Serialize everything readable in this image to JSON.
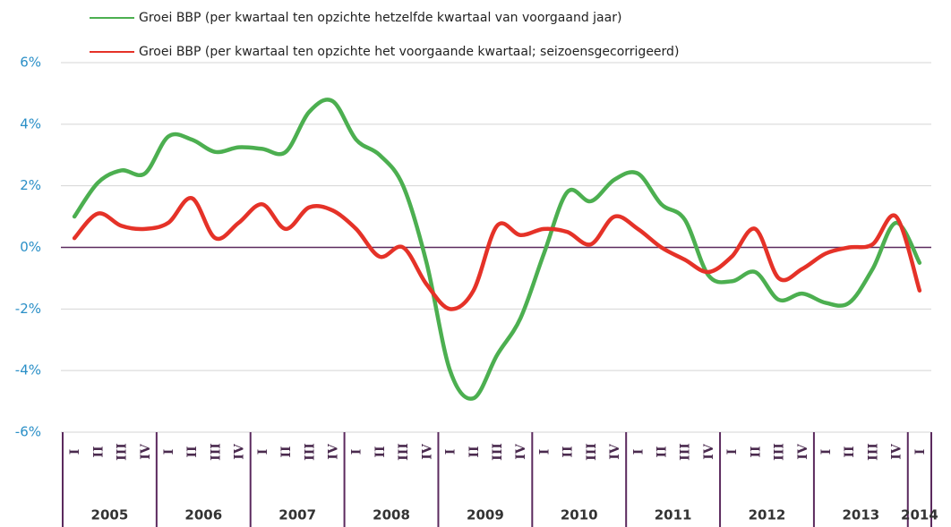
{
  "chart_data": {
    "type": "line",
    "categories": [
      "I",
      "II",
      "III",
      "IV",
      "I",
      "II",
      "III",
      "IV",
      "I",
      "II",
      "III",
      "IV",
      "I",
      "II",
      "III",
      "IV",
      "I",
      "II",
      "III",
      "IV",
      "I",
      "II",
      "III",
      "IV",
      "I",
      "II",
      "III",
      "IV",
      "I",
      "II",
      "III",
      "IV",
      "I",
      "II",
      "III",
      "IV",
      "I"
    ],
    "years": [
      "2005",
      "2006",
      "2007",
      "2008",
      "2009",
      "2010",
      "2011",
      "2012",
      "2013",
      "2014"
    ],
    "series": [
      {
        "name": "Groei BBP (per kwartaal ten opzichte hetzelfde kwartaal van voorgaand jaar)",
        "color": "#4caf50",
        "values": [
          1.0,
          2.1,
          2.5,
          2.4,
          3.6,
          3.5,
          3.1,
          3.25,
          3.2,
          3.1,
          4.4,
          4.75,
          3.5,
          3.0,
          2.0,
          -0.5,
          -4.0,
          -4.9,
          -3.5,
          -2.3,
          -0.2,
          1.8,
          1.5,
          2.2,
          2.4,
          1.4,
          0.9,
          -0.9,
          -1.1,
          -0.8,
          -1.7,
          -1.5,
          -1.8,
          -1.8,
          -0.7,
          0.8,
          -0.5
        ]
      },
      {
        "name": "Groei BBP (per kwartaal ten opzichte het voorgaande kwartaal; seizoensgecorrigeerd)",
        "color": "#e53228",
        "values": [
          0.3,
          1.1,
          0.7,
          0.6,
          0.8,
          1.6,
          0.3,
          0.8,
          1.4,
          0.6,
          1.3,
          1.2,
          0.6,
          -0.3,
          0.0,
          -1.2,
          -2.0,
          -1.4,
          0.7,
          0.4,
          0.6,
          0.5,
          0.1,
          1.0,
          0.6,
          0.0,
          -0.4,
          -0.8,
          -0.3,
          0.6,
          -1.0,
          -0.7,
          -0.2,
          0.0,
          0.1,
          1.0,
          -1.4
        ]
      }
    ],
    "ylim": [
      -6,
      6
    ],
    "yticks": [
      {
        "value": -6,
        "label": "-6%"
      },
      {
        "value": -4,
        "label": "-4%"
      },
      {
        "value": -2,
        "label": "-2%"
      },
      {
        "value": 0,
        "label": "0%"
      },
      {
        "value": 2,
        "label": "2%"
      },
      {
        "value": 4,
        "label": "4%"
      },
      {
        "value": 6,
        "label": "6%"
      }
    ],
    "grid": true,
    "legend": "top"
  }
}
